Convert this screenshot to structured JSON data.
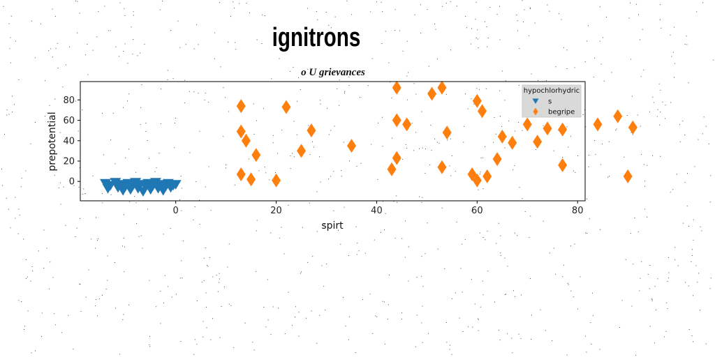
{
  "chart_data": {
    "type": "scatter",
    "title": "ignitrons",
    "subtitle": "o U grievances",
    "xlabel": "spirt",
    "ylabel": "prepotential",
    "xlim": [
      -19,
      81.5
    ],
    "ylim": [
      -19,
      98
    ],
    "xticks": [
      0,
      20,
      40,
      60,
      80
    ],
    "yticks": [
      0,
      20,
      40,
      60,
      80
    ],
    "grid": false,
    "legend": {
      "title": "hypochlorhydric",
      "position": "top-right"
    },
    "series": [
      {
        "name": "s",
        "marker": "triangle-down",
        "color": "#1f77b4",
        "points": [
          [
            -14,
            -2
          ],
          [
            -13.5,
            -7
          ],
          [
            -13,
            -4
          ],
          [
            -12,
            -1
          ],
          [
            -11.5,
            -6
          ],
          [
            -11,
            -3
          ],
          [
            -10.5,
            -9
          ],
          [
            -10,
            -5
          ],
          [
            -9.5,
            -2
          ],
          [
            -9,
            -8
          ],
          [
            -8.5,
            -4
          ],
          [
            -8,
            -1
          ],
          [
            -7.5,
            -7
          ],
          [
            -7,
            -3
          ],
          [
            -6.5,
            -10
          ],
          [
            -6,
            -5
          ],
          [
            -5.5,
            -2
          ],
          [
            -5,
            -8
          ],
          [
            -4.5,
            -4
          ],
          [
            -4,
            -1
          ],
          [
            -3.5,
            -7
          ],
          [
            -3,
            -3
          ],
          [
            -2.5,
            -9
          ],
          [
            -2,
            -5
          ],
          [
            -1.5,
            -2
          ],
          [
            -1,
            -6
          ],
          [
            -0.5,
            -4
          ],
          [
            0,
            -3
          ]
        ]
      },
      {
        "name": "begripe",
        "marker": "diamond",
        "color": "#ff7f0e",
        "points": [
          [
            13,
            74
          ],
          [
            13,
            49
          ],
          [
            13,
            7
          ],
          [
            14,
            40
          ],
          [
            15,
            2
          ],
          [
            16,
            26
          ],
          [
            20,
            1
          ],
          [
            22,
            73
          ],
          [
            25,
            30
          ],
          [
            27,
            50
          ],
          [
            35,
            35
          ],
          [
            43,
            12
          ],
          [
            44,
            92
          ],
          [
            44,
            60
          ],
          [
            44,
            23
          ],
          [
            46,
            56
          ],
          [
            51,
            86
          ],
          [
            53,
            92
          ],
          [
            53,
            14
          ],
          [
            54,
            48
          ],
          [
            59,
            7
          ],
          [
            60,
            79
          ],
          [
            60,
            1
          ],
          [
            61,
            69
          ],
          [
            62,
            5
          ],
          [
            64,
            22
          ],
          [
            65,
            44
          ],
          [
            67,
            38
          ],
          [
            70,
            56
          ],
          [
            72,
            39
          ],
          [
            74,
            52
          ],
          [
            77,
            51
          ],
          [
            77,
            16
          ],
          [
            84,
            56
          ],
          [
            88,
            64
          ],
          [
            90,
            5
          ],
          [
            91,
            53
          ]
        ]
      }
    ]
  }
}
